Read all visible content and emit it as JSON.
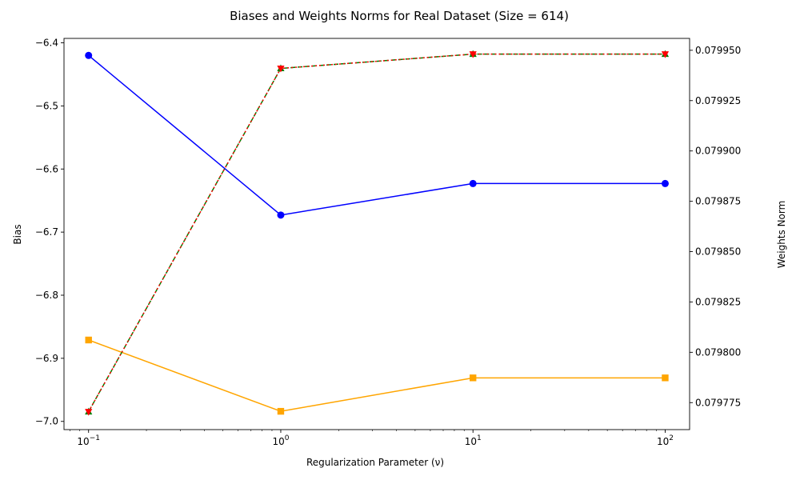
{
  "chart_data": {
    "type": "line",
    "title": "Biases and Weights Norms for Real Dataset (Size = 614)",
    "xlabel": "Regularization Parameter (ν)",
    "ylabel_left": "Bias",
    "ylabel_right": "Weights Norm",
    "x_scale": "log",
    "x": [
      0.1,
      1,
      10,
      100
    ],
    "x_tick_labels": [
      {
        "base": "10",
        "exp": "−1"
      },
      {
        "base": "10",
        "exp": "0"
      },
      {
        "base": "10",
        "exp": "1"
      },
      {
        "base": "10",
        "exp": "2"
      }
    ],
    "xlim": [
      0.0745,
      134
    ],
    "ylim_left": [
      -7.013,
      -6.393
    ],
    "y_ticks_left": [
      -7.0,
      -6.9,
      -6.8,
      -6.7,
      -6.6,
      -6.5,
      -6.4
    ],
    "y_tick_labels_left": [
      "−7.0",
      "−6.9",
      "−6.8",
      "−6.7",
      "−6.6",
      "−6.5",
      "−6.4"
    ],
    "ylim_right": [
      0.0797616,
      0.0799559
    ],
    "y_ticks_right": [
      0.079775,
      0.0798,
      0.079825,
      0.07985,
      0.079875,
      0.0799,
      0.079925,
      0.07995
    ],
    "y_tick_labels_right": [
      "0.079775",
      "0.079800",
      "0.079825",
      "0.079850",
      "0.079875",
      "0.079900",
      "0.079925",
      "0.079950"
    ],
    "grid": false,
    "series": [
      {
        "axis": "left",
        "color": "#0000ff",
        "marker": "circle",
        "dash": "solid",
        "values": [
          -6.42,
          -6.673,
          -6.623,
          -6.623
        ]
      },
      {
        "axis": "left",
        "color": "#ffa500",
        "marker": "square",
        "dash": "solid",
        "values": [
          -6.871,
          -6.984,
          -6.931,
          -6.931
        ]
      },
      {
        "axis": "right",
        "color": "#008000",
        "marker": "triangle-up",
        "dash": "dashed",
        "values": [
          0.0797705,
          0.079941,
          0.0799481,
          0.0799481
        ]
      },
      {
        "axis": "right",
        "color": "#ff0000",
        "marker": "triangle-down",
        "dash": "dotted",
        "values": [
          0.0797705,
          0.079941,
          0.0799481,
          0.0799481
        ]
      }
    ]
  }
}
